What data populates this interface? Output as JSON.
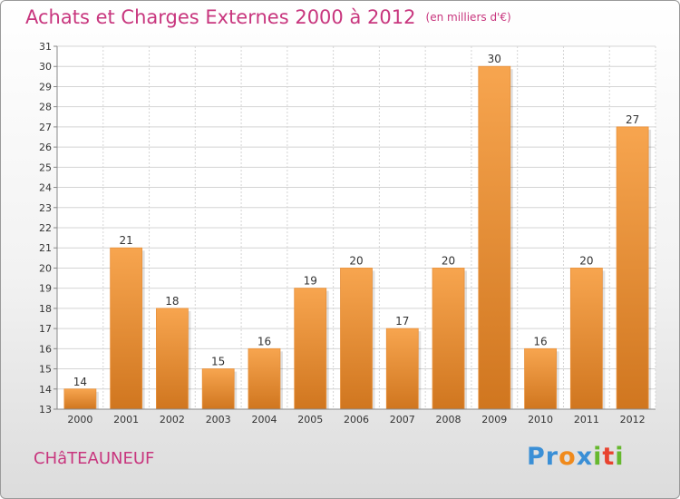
{
  "header": {
    "title": "Achats et Charges Externes 2000 à 2012",
    "unit": "(en milliers d'€)"
  },
  "commune": "CHâTEAUNEUF",
  "logo": {
    "text": "Proxiti",
    "letters": [
      {
        "ch": "P",
        "color": "#3a8fd6"
      },
      {
        "ch": "r",
        "color": "#3a8fd6"
      },
      {
        "ch": "o",
        "color": "#f08a1c"
      },
      {
        "ch": "x",
        "color": "#3a8fd6"
      },
      {
        "ch": "i",
        "color": "#66b82e"
      },
      {
        "ch": "t",
        "color": "#e8432f"
      },
      {
        "ch": "i",
        "color": "#66b82e"
      }
    ]
  },
  "chart_data": {
    "type": "bar",
    "categories": [
      "2000",
      "2001",
      "2002",
      "2003",
      "2004",
      "2005",
      "2006",
      "2007",
      "2008",
      "2009",
      "2010",
      "2011",
      "2012"
    ],
    "values": [
      14,
      21,
      18,
      15,
      16,
      19,
      20,
      17,
      20,
      30,
      16,
      20,
      27
    ],
    "ylim": [
      13,
      31
    ],
    "yticks": [
      13,
      14,
      15,
      16,
      17,
      18,
      19,
      20,
      21,
      22,
      23,
      24,
      25,
      26,
      27,
      28,
      29,
      30,
      31
    ],
    "grid": true,
    "colors": {
      "bar_light": "#f7a54f",
      "bar_dark": "#d0761f",
      "grid": "#d4d4d4",
      "axis": "#888888",
      "text": "#333333"
    }
  }
}
